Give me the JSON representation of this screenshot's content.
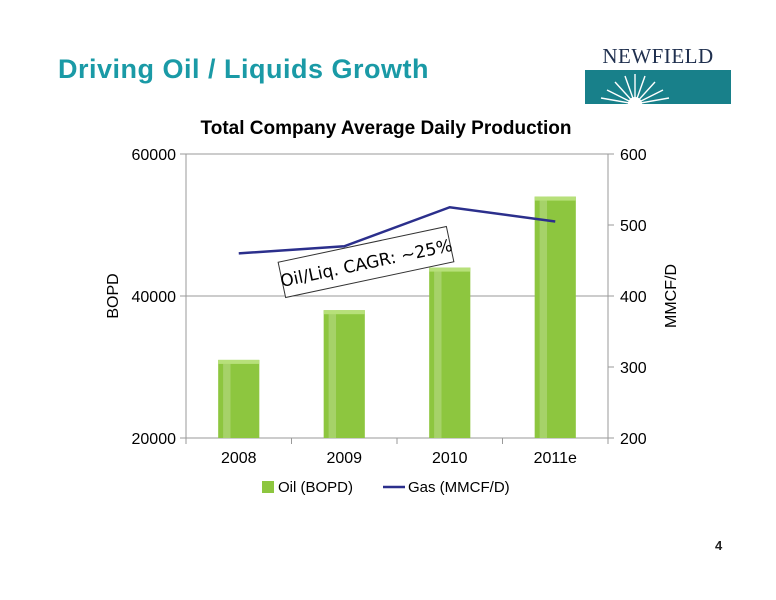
{
  "slide": {
    "title": "Driving Oil /  Liquids Growth",
    "logo_text": "NEWFIELD",
    "page_number": "4"
  },
  "colors": {
    "title": "#1a9aa6",
    "bar": "#8dc63f",
    "line": "#2b2f8c",
    "logo_box": "#18808a"
  },
  "chart_data": {
    "type": "bar",
    "title": "Total Company Average Daily Production",
    "categories": [
      "2008",
      "2009",
      "2010",
      "2011e"
    ],
    "series": [
      {
        "name": "Oil (BOPD)",
        "type": "bar",
        "axis": "left",
        "values": [
          31000,
          38000,
          44000,
          54000
        ]
      },
      {
        "name": "Gas (MMCF/D)",
        "type": "line",
        "axis": "right",
        "values": [
          460,
          470,
          525,
          505
        ]
      }
    ],
    "ylabel": "BOPD",
    "ylim": [
      20000,
      60000
    ],
    "yticks": [
      "20000",
      "40000",
      "60000"
    ],
    "ytick_values": [
      20000,
      40000,
      60000
    ],
    "y2label": "MMCF/D",
    "y2lim": [
      200,
      600
    ],
    "y2ticks": [
      "200",
      "300",
      "400",
      "500",
      "600"
    ],
    "y2tick_values": [
      200,
      300,
      400,
      500,
      600
    ],
    "gridlines": true,
    "legend": "bottom",
    "annotation": "Oil/Liq. CAGR: ~25%"
  }
}
